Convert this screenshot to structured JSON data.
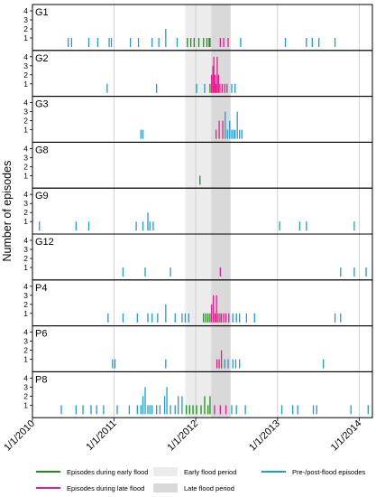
{
  "chart_data": {
    "type": "bar",
    "ylabel": "Number of episodes",
    "x_start": "1/1/2010",
    "x_end": "3/1/2014",
    "xticks": [
      "1/1/2010",
      "1/1/2011",
      "1/1/2012",
      "1/1/2013",
      "1/1/2014"
    ],
    "yticks": [
      1,
      2,
      3,
      4
    ],
    "ylim": [
      0,
      4
    ],
    "early_flood_period": [
      "11/15/2011",
      "3/10/2012"
    ],
    "late_flood_period": [
      "3/10/2012",
      "6/5/2012"
    ],
    "colors": {
      "early": "#1e8f1e",
      "late": "#e61e8c",
      "other": "#1f9bcf",
      "early_band": "#ececec",
      "late_band": "#d9d9d9"
    },
    "legend": [
      {
        "label": "Episodes during early flood",
        "kind": "line",
        "color": "#1e8f1e"
      },
      {
        "label": "Episodes during late flood",
        "kind": "line",
        "color": "#e61e8c"
      },
      {
        "label": "Early flood period",
        "kind": "box",
        "color": "#ececec"
      },
      {
        "label": "Late flood period",
        "kind": "box",
        "color": "#d9d9d9"
      },
      {
        "label": "Pre-/post-flood episodes",
        "kind": "line",
        "color": "#1f9bcf"
      }
    ],
    "panels": [
      {
        "name": "G1",
        "episodes": [
          [
            "6/10/2010",
            1,
            "other"
          ],
          [
            "6/25/2010",
            1,
            "other"
          ],
          [
            "9/10/2010",
            1,
            "other"
          ],
          [
            "10/20/2010",
            1,
            "other"
          ],
          [
            "12/10/2010",
            1,
            "other"
          ],
          [
            "12/20/2010",
            1,
            "other"
          ],
          [
            "3/15/2011",
            1,
            "other"
          ],
          [
            "4/20/2011",
            1,
            "other"
          ],
          [
            "6/20/2011",
            1,
            "other"
          ],
          [
            "7/20/2011",
            1,
            "other"
          ],
          [
            "8/20/2011",
            2,
            "other"
          ],
          [
            "10/10/2011",
            1,
            "other"
          ],
          [
            "11/25/2011",
            1,
            "early"
          ],
          [
            "12/10/2011",
            1,
            "early"
          ],
          [
            "12/25/2011",
            1,
            "early"
          ],
          [
            "1/15/2012",
            1,
            "early"
          ],
          [
            "2/5/2012",
            1,
            "early"
          ],
          [
            "2/20/2012",
            1,
            "early"
          ],
          [
            "3/1/2012",
            1,
            "early"
          ],
          [
            "3/5/2012",
            1,
            "early"
          ],
          [
            "4/20/2012",
            1,
            "late"
          ],
          [
            "5/5/2012",
            1,
            "late"
          ],
          [
            "5/25/2012",
            1,
            "late"
          ],
          [
            "7/20/2012",
            1,
            "other"
          ],
          [
            "2/5/2013",
            1,
            "other"
          ],
          [
            "5/10/2013",
            1,
            "other"
          ],
          [
            "6/5/2013",
            1,
            "other"
          ],
          [
            "7/5/2013",
            1,
            "other"
          ],
          [
            "9/15/2013",
            1,
            "other"
          ]
        ]
      },
      {
        "name": "G2",
        "episodes": [
          [
            "12/1/2010",
            1,
            "other"
          ],
          [
            "7/10/2011",
            1,
            "other"
          ],
          [
            "1/5/2012",
            1,
            "other"
          ],
          [
            "2/10/2012",
            1,
            "other"
          ],
          [
            "3/5/2012",
            1,
            "early"
          ],
          [
            "3/12/2012",
            2,
            "late"
          ],
          [
            "3/18/2012",
            3,
            "late"
          ],
          [
            "3/22/2012",
            4,
            "late"
          ],
          [
            "3/27/2012",
            2,
            "late"
          ],
          [
            "4/1/2012",
            1,
            "late"
          ],
          [
            "4/6/2012",
            4,
            "late"
          ],
          [
            "4/12/2012",
            2,
            "late"
          ],
          [
            "4/18/2012",
            1,
            "late"
          ],
          [
            "4/28/2012",
            1,
            "late"
          ],
          [
            "5/10/2012",
            1,
            "late"
          ],
          [
            "5/20/2012",
            1,
            "late"
          ],
          [
            "6/10/2012",
            1,
            "other"
          ],
          [
            "6/25/2012",
            1,
            "other"
          ]
        ]
      },
      {
        "name": "G3",
        "episodes": [
          [
            "5/1/2011",
            1,
            "other"
          ],
          [
            "5/10/2011",
            1,
            "other"
          ],
          [
            "4/1/2012",
            1,
            "late"
          ],
          [
            "4/15/2012",
            2,
            "late"
          ],
          [
            "5/1/2012",
            2,
            "late"
          ],
          [
            "5/12/2012",
            3,
            "other"
          ],
          [
            "5/22/2012",
            1,
            "other"
          ],
          [
            "6/1/2012",
            2,
            "other"
          ],
          [
            "6/10/2012",
            1,
            "other"
          ],
          [
            "6/18/2012",
            1,
            "other"
          ],
          [
            "6/25/2012",
            1,
            "other"
          ],
          [
            "7/5/2012",
            3,
            "other"
          ],
          [
            "7/15/2012",
            1,
            "other"
          ],
          [
            "7/25/2012",
            1,
            "other"
          ]
        ]
      },
      {
        "name": "G8",
        "episodes": [
          [
            "1/20/2012",
            1,
            "early"
          ]
        ]
      },
      {
        "name": "G9",
        "episodes": [
          [
            "2/1/2010",
            1,
            "other"
          ],
          [
            "7/15/2010",
            1,
            "other"
          ],
          [
            "9/10/2010",
            1,
            "other"
          ],
          [
            "4/10/2011",
            1,
            "other"
          ],
          [
            "5/10/2011",
            1,
            "other"
          ],
          [
            "6/1/2011",
            2,
            "other"
          ],
          [
            "6/10/2011",
            1,
            "other"
          ],
          [
            "6/25/2011",
            1,
            "other"
          ],
          [
            "1/10/2013",
            1,
            "other"
          ],
          [
            "4/10/2013",
            1,
            "other"
          ],
          [
            "5/10/2013",
            1,
            "other"
          ],
          [
            "12/10/2013",
            1,
            "other"
          ]
        ]
      },
      {
        "name": "G12",
        "episodes": [
          [
            "2/10/2011",
            1,
            "other"
          ],
          [
            "5/20/2011",
            1,
            "other"
          ],
          [
            "9/10/2011",
            1,
            "other"
          ],
          [
            "4/20/2012",
            1,
            "late"
          ],
          [
            "10/10/2013",
            1,
            "other"
          ],
          [
            "12/10/2013",
            1,
            "other"
          ],
          [
            "2/1/2014",
            1,
            "other"
          ]
        ]
      },
      {
        "name": "P4",
        "episodes": [
          [
            "12/5/2010",
            1,
            "other"
          ],
          [
            "2/10/2011",
            1,
            "other"
          ],
          [
            "4/15/2011",
            1,
            "other"
          ],
          [
            "6/1/2011",
            1,
            "other"
          ],
          [
            "6/20/2011",
            1,
            "other"
          ],
          [
            "7/15/2011",
            1,
            "other"
          ],
          [
            "8/20/2011",
            2,
            "other"
          ],
          [
            "10/1/2011",
            1,
            "other"
          ],
          [
            "11/1/2011",
            1,
            "other"
          ],
          [
            "11/15/2011",
            1,
            "other"
          ],
          [
            "12/1/2011",
            1,
            "other"
          ],
          [
            "2/5/2012",
            1,
            "early"
          ],
          [
            "2/15/2012",
            1,
            "early"
          ],
          [
            "2/25/2012",
            1,
            "early"
          ],
          [
            "3/5/2012",
            1,
            "early"
          ],
          [
            "3/12/2012",
            2,
            "late"
          ],
          [
            "3/20/2012",
            3,
            "late"
          ],
          [
            "3/28/2012",
            1,
            "late"
          ],
          [
            "4/3/2012",
            3,
            "late"
          ],
          [
            "4/10/2012",
            1,
            "late"
          ],
          [
            "4/18/2012",
            1,
            "late"
          ],
          [
            "4/25/2012",
            1,
            "late"
          ],
          [
            "5/5/2012",
            1,
            "late"
          ],
          [
            "5/15/2012",
            1,
            "late"
          ],
          [
            "5/28/2012",
            1,
            "late"
          ],
          [
            "6/15/2012",
            1,
            "other"
          ],
          [
            "7/1/2012",
            1,
            "other"
          ],
          [
            "7/15/2012",
            1,
            "other"
          ],
          [
            "8/15/2012",
            1,
            "other"
          ],
          [
            "9/20/2012",
            1,
            "other"
          ],
          [
            "9/15/2013",
            1,
            "other"
          ],
          [
            "10/10/2013",
            1,
            "other"
          ]
        ]
      },
      {
        "name": "P6",
        "episodes": [
          [
            "12/25/2010",
            1,
            "other"
          ],
          [
            "1/5/2011",
            1,
            "other"
          ],
          [
            "8/20/2011",
            1,
            "other"
          ],
          [
            "4/5/2012",
            1,
            "late"
          ],
          [
            "4/15/2012",
            1,
            "late"
          ],
          [
            "4/25/2012",
            2,
            "late"
          ],
          [
            "5/10/2012",
            1,
            "other"
          ],
          [
            "5/25/2012",
            1,
            "other"
          ],
          [
            "6/15/2012",
            1,
            "other"
          ],
          [
            "6/28/2012",
            1,
            "other"
          ],
          [
            "7/15/2012",
            1,
            "other"
          ],
          [
            "7/25/2013",
            1,
            "other"
          ]
        ]
      },
      {
        "name": "P8",
        "episodes": [
          [
            "5/10/2010",
            1,
            "other"
          ],
          [
            "7/15/2010",
            1,
            "other"
          ],
          [
            "8/15/2010",
            1,
            "other"
          ],
          [
            "9/20/2010",
            1,
            "other"
          ],
          [
            "10/15/2010",
            1,
            "other"
          ],
          [
            "11/15/2010",
            1,
            "other"
          ],
          [
            "1/15/2011",
            1,
            "other"
          ],
          [
            "3/10/2011",
            1,
            "other"
          ],
          [
            "4/15/2011",
            1,
            "other"
          ],
          [
            "5/1/2011",
            1,
            "other"
          ],
          [
            "5/10/2011",
            2,
            "other"
          ],
          [
            "5/20/2011",
            3,
            "other"
          ],
          [
            "6/1/2011",
            1,
            "other"
          ],
          [
            "6/10/2011",
            1,
            "other"
          ],
          [
            "6/20/2011",
            1,
            "other"
          ],
          [
            "7/10/2011",
            1,
            "other"
          ],
          [
            "7/25/2011",
            1,
            "other"
          ],
          [
            "8/15/2011",
            2,
            "other"
          ],
          [
            "8/25/2011",
            3,
            "other"
          ],
          [
            "9/10/2011",
            1,
            "other"
          ],
          [
            "10/1/2011",
            1,
            "other"
          ],
          [
            "10/15/2011",
            2,
            "other"
          ],
          [
            "11/1/2011",
            2,
            "other"
          ],
          [
            "11/20/2011",
            1,
            "early"
          ],
          [
            "12/5/2011",
            1,
            "early"
          ],
          [
            "12/20/2011",
            1,
            "early"
          ],
          [
            "1/5/2012",
            1,
            "early"
          ],
          [
            "1/25/2012",
            1,
            "early"
          ],
          [
            "2/10/2012",
            2,
            "early"
          ],
          [
            "2/25/2012",
            1,
            "early"
          ],
          [
            "3/5/2012",
            2,
            "early"
          ],
          [
            "3/25/2012",
            1,
            "late"
          ],
          [
            "4/20/2012",
            1,
            "late"
          ],
          [
            "5/15/2012",
            1,
            "late"
          ],
          [
            "6/10/2012",
            1,
            "other"
          ],
          [
            "7/1/2012",
            1,
            "other"
          ],
          [
            "8/10/2012",
            1,
            "other"
          ],
          [
            "1/20/2013",
            1,
            "other"
          ],
          [
            "3/10/2013",
            1,
            "other"
          ],
          [
            "4/1/2013",
            1,
            "other"
          ],
          [
            "6/10/2013",
            1,
            "other"
          ],
          [
            "6/25/2013",
            1,
            "other"
          ],
          [
            "11/25/2013",
            1,
            "other"
          ],
          [
            "2/10/2014",
            1,
            "other"
          ]
        ]
      }
    ]
  }
}
